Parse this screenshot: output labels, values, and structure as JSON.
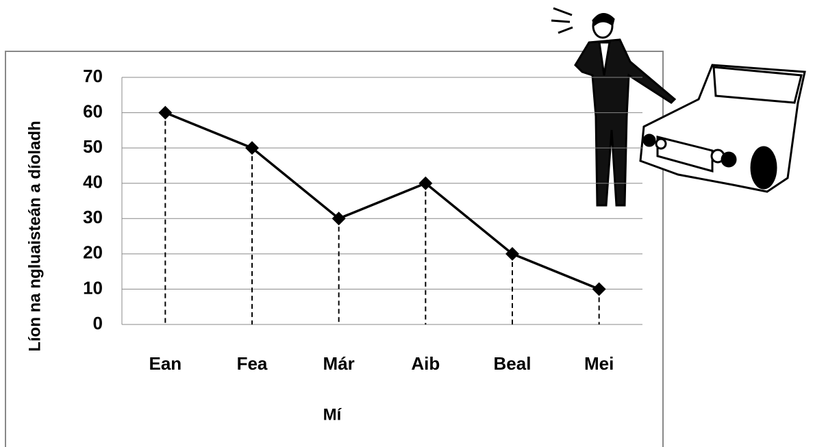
{
  "chart_data": {
    "type": "line",
    "categories": [
      "Ean",
      "Fea",
      "Már",
      "Aib",
      "Beal",
      "Mei"
    ],
    "values": [
      60,
      50,
      30,
      40,
      20,
      10
    ],
    "color": "#000000",
    "ylim": [
      0,
      70
    ],
    "yticks": [
      0,
      10,
      20,
      30,
      40,
      50,
      60,
      70
    ],
    "grid": true,
    "drop_lines": true,
    "x_label": "Mí",
    "y_label": "Líon na ngluaisteán a díoladh"
  }
}
